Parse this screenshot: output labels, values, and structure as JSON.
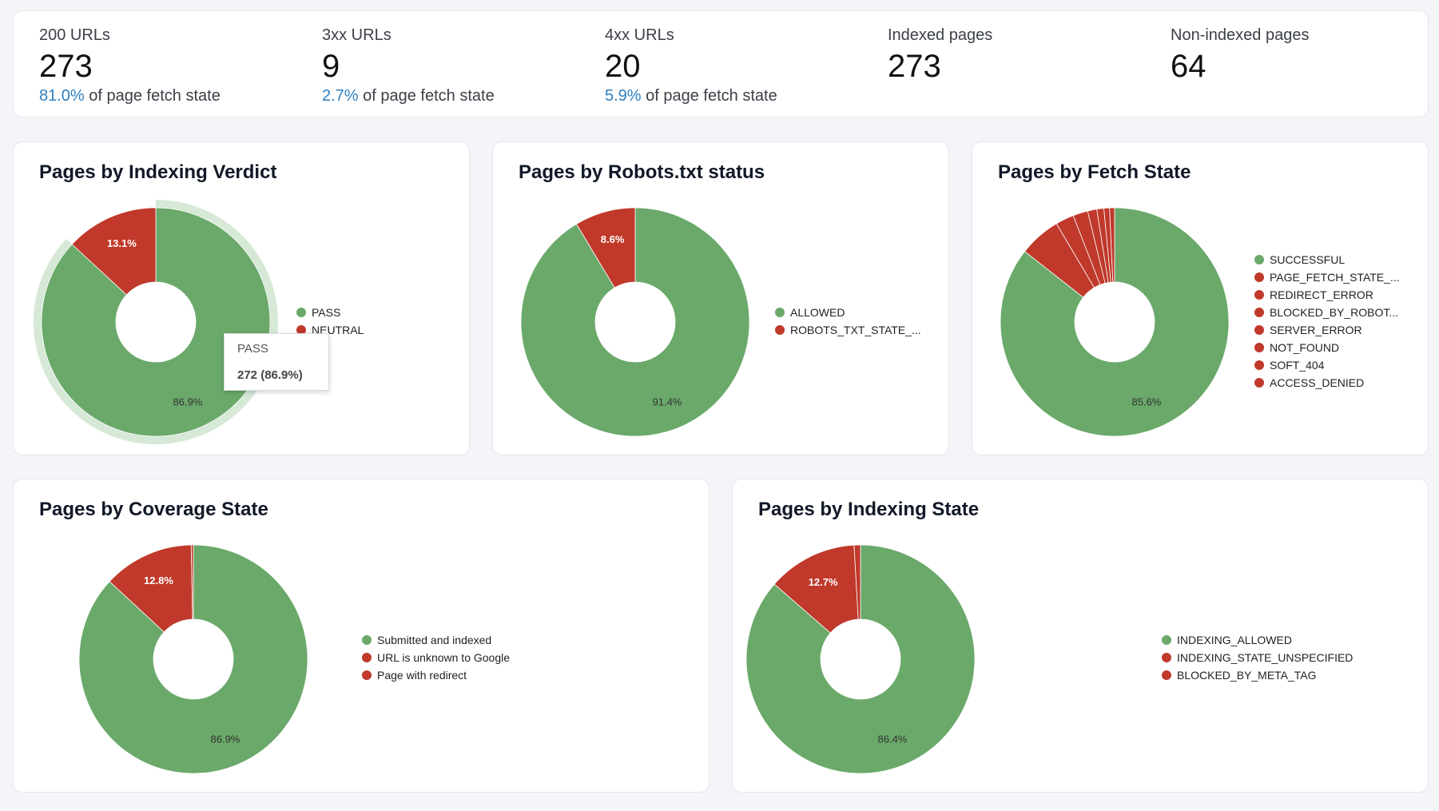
{
  "kpis": [
    {
      "label": "200 URLs",
      "value": "273",
      "pct": "81.0%",
      "suffix": " of page fetch state"
    },
    {
      "label": "3xx URLs",
      "value": "9",
      "pct": "2.7%",
      "suffix": " of page fetch state"
    },
    {
      "label": "4xx URLs",
      "value": "20",
      "pct": "5.9%",
      "suffix": " of page fetch state"
    },
    {
      "label": "Indexed pages",
      "value": "273",
      "pct": "",
      "suffix": ""
    },
    {
      "label": "Non-indexed pages",
      "value": "64",
      "pct": "",
      "suffix": ""
    }
  ],
  "colors": {
    "green": "#6aa96a",
    "red": "#c0392b",
    "halo": "#d6e8d6"
  },
  "tooltip": {
    "label": "PASS",
    "value": "272 (86.9%)"
  },
  "chart_data": [
    {
      "type": "pie",
      "title": "Pages by Indexing Verdict",
      "categories": [
        "PASS",
        "NEUTRAL"
      ],
      "values": [
        86.9,
        13.1
      ],
      "data_labels": [
        "86.9%",
        "13.1%"
      ],
      "legend": "right",
      "highlighted": "PASS"
    },
    {
      "type": "pie",
      "title": "Pages by Robots.txt status",
      "categories": [
        "ALLOWED",
        "ROBOTS_TXT_STATE_..."
      ],
      "values": [
        91.4,
        8.6
      ],
      "data_labels": [
        "91.4%",
        "8.6%"
      ],
      "legend": "right"
    },
    {
      "type": "pie",
      "title": "Pages by Fetch State",
      "categories": [
        "SUCCESSFUL",
        "PAGE_FETCH_STATE_...",
        "REDIRECT_ERROR",
        "BLOCKED_BY_ROBOT...",
        "SERVER_ERROR",
        "NOT_FOUND",
        "SOFT_404",
        "ACCESS_DENIED"
      ],
      "values": [
        85.6,
        5.9,
        2.6,
        2.1,
        1.3,
        1.0,
        0.8,
        0.7
      ],
      "data_labels": [
        "85.6%",
        "",
        "",
        "",
        "",
        "",
        "",
        ""
      ],
      "legend": "right"
    },
    {
      "type": "pie",
      "title": "Pages by Coverage State",
      "categories": [
        "Submitted and indexed",
        "URL is unknown to Google",
        "Page with redirect"
      ],
      "values": [
        86.9,
        12.8,
        0.3
      ],
      "data_labels": [
        "86.9%",
        "12.8%",
        ""
      ],
      "legend": "right"
    },
    {
      "type": "pie",
      "title": "Pages by Indexing State",
      "categories": [
        "INDEXING_ALLOWED",
        "INDEXING_STATE_UNSPECIFIED",
        "BLOCKED_BY_META_TAG"
      ],
      "values": [
        86.4,
        12.7,
        0.9
      ],
      "data_labels": [
        "86.4%",
        "12.7%",
        ""
      ],
      "legend": "right"
    }
  ]
}
